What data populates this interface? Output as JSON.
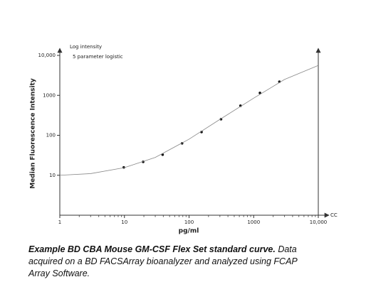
{
  "chart_data": {
    "type": "scatter",
    "y_annotation": "Log intensity",
    "x_end_label": "CC",
    "y_label": "Median Fluorescence Intensity",
    "x_label": "pg/ml",
    "log_x": true,
    "log_y": true,
    "xlim": [
      1,
      10000
    ],
    "ylim": [
      1,
      10000
    ],
    "xticks": [
      1,
      10,
      100,
      1000,
      {
        "value": 10000,
        "label": "10,000"
      }
    ],
    "yticks": [
      10,
      100,
      1000,
      {
        "value": 10000,
        "label": "10,000"
      }
    ],
    "series": [
      {
        "name": null,
        "color": "#111111",
        "x": [
          9.77,
          19.5,
          39,
          78,
          156,
          312.5,
          625,
          1250,
          2500
        ],
        "values": [
          15.7,
          21.7,
          32.7,
          63,
          121,
          253,
          550,
          1150,
          2200
        ]
      },
      {
        "name": "5 parameter logistic",
        "color": "#888888",
        "line": true,
        "x": [
          1,
          3,
          10,
          30,
          100,
          300,
          1000,
          3000,
          10000
        ],
        "values": [
          10,
          11,
          15.5,
          28,
          80,
          250,
          850,
          2500,
          5600
        ]
      }
    ],
    "caption_title": "Example BD CBA Mouse GM-CSF Flex Set standard curve.",
    "caption_text": "Data acquired on a BD FACSArray bioanalyzer and analyzed using FCAP Array Software."
  }
}
